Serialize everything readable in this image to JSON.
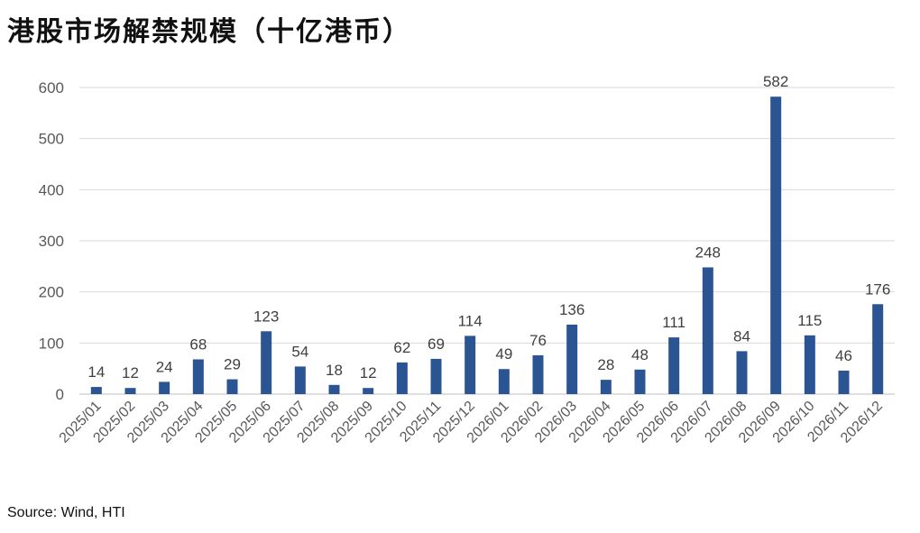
{
  "title": "港股市场解禁规模（十亿港币）",
  "source": "Source: Wind, HTI",
  "chart_data": {
    "type": "bar",
    "title": "港股市场解禁规模（十亿港币）",
    "xlabel": "",
    "ylabel": "",
    "ylim": [
      0,
      600
    ],
    "yticks": [
      0,
      100,
      200,
      300,
      400,
      500,
      600
    ],
    "grid": true,
    "legend": "none",
    "bar_color": "#2A5592",
    "categories": [
      "2025/01",
      "2025/02",
      "2025/03",
      "2025/04",
      "2025/05",
      "2025/06",
      "2025/07",
      "2025/08",
      "2025/09",
      "2025/10",
      "2025/11",
      "2025/12",
      "2026/01",
      "2026/02",
      "2026/03",
      "2026/04",
      "2026/05",
      "2026/06",
      "2026/07",
      "2026/08",
      "2026/09",
      "2026/10",
      "2026/11",
      "2026/12"
    ],
    "values": [
      14,
      12,
      24,
      68,
      29,
      123,
      54,
      18,
      12,
      62,
      69,
      114,
      49,
      76,
      136,
      28,
      48,
      111,
      248,
      84,
      582,
      115,
      46,
      176
    ]
  }
}
